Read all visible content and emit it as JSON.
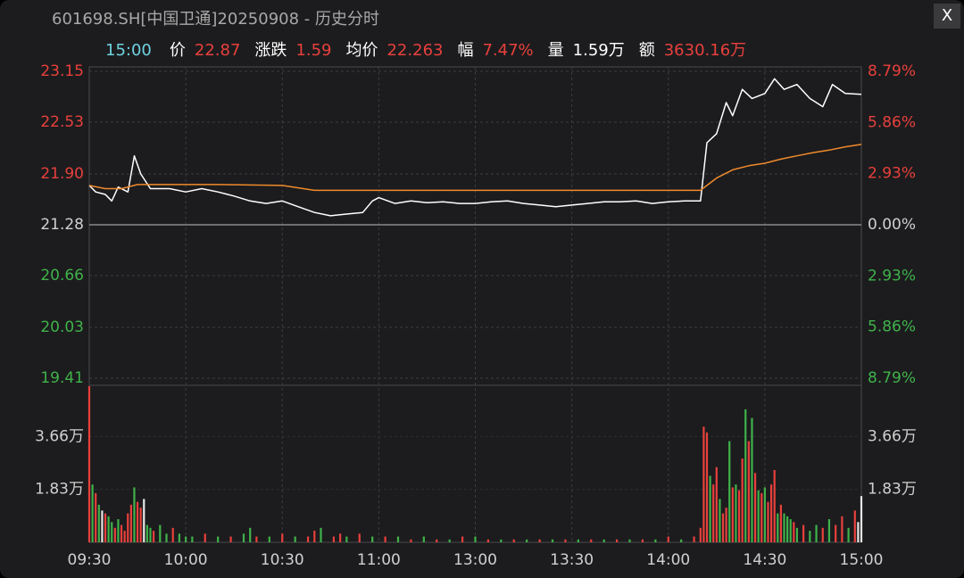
{
  "header": {
    "title": "601698.SH[中国卫通]20250908 - 历史分时",
    "close": "X"
  },
  "quote": {
    "time": "15:00",
    "items": [
      {
        "label": "价",
        "value": "22.87",
        "color": "#e8403c"
      },
      {
        "label": "涨跌",
        "value": "1.59",
        "color": "#e8403c"
      },
      {
        "label": "均价",
        "value": "22.263",
        "color": "#e8403c"
      },
      {
        "label": "幅",
        "value": "7.47%",
        "color": "#e8403c"
      },
      {
        "label": "量",
        "value": "1.59万",
        "color": "#ffffff"
      },
      {
        "label": "额",
        "value": "3630.16万",
        "color": "#e8403c"
      }
    ]
  },
  "chart_data": [
    {
      "type": "line",
      "xlim": [
        0,
        240
      ],
      "xticks": [
        {
          "value": 0,
          "label": "09:30"
        },
        {
          "value": 30,
          "label": "10:00"
        },
        {
          "value": 60,
          "label": "10:30"
        },
        {
          "value": 90,
          "label": "11:00"
        },
        {
          "value": 120,
          "label": "13:00"
        },
        {
          "value": 150,
          "label": "13:30"
        },
        {
          "value": 180,
          "label": "14:00"
        },
        {
          "value": 210,
          "label": "14:30"
        },
        {
          "value": 240,
          "label": "15:00"
        }
      ],
      "ylim": [
        19.41,
        23.15
      ],
      "yticks": [
        23.15,
        22.53,
        {
          "value": 21.9,
          "label": "21.90"
        },
        21.28,
        20.66,
        20.03,
        19.41
      ],
      "y2lim": [
        -8.79,
        8.79
      ],
      "y2ticks": [
        {
          "value": 8.79,
          "label": "8.79%"
        },
        {
          "value": 5.86,
          "label": "5.86%"
        },
        {
          "value": 2.93,
          "label": "2.93%"
        },
        {
          "value": 0,
          "label": "0.00%"
        },
        {
          "value": -2.93,
          "label": "2.93%"
        },
        {
          "value": -5.86,
          "label": "5.86%"
        },
        {
          "value": -8.79,
          "label": "8.79%"
        }
      ],
      "grid": true,
      "series": [
        {
          "color": "#ffffff",
          "x": [
            0,
            2,
            5,
            7,
            9,
            12,
            14,
            16,
            19,
            25,
            30,
            35,
            40,
            45,
            50,
            55,
            60,
            65,
            70,
            75,
            80,
            85,
            88,
            90,
            95,
            100,
            105,
            110,
            115,
            120,
            125,
            130,
            135,
            140,
            145,
            150,
            155,
            160,
            165,
            170,
            175,
            180,
            185,
            190,
            192,
            195,
            198,
            200,
            203,
            206,
            210,
            213,
            216,
            220,
            224,
            228,
            231,
            235,
            240
          ],
          "values": [
            21.76,
            21.68,
            21.65,
            21.57,
            21.74,
            21.68,
            22.12,
            21.9,
            21.72,
            21.72,
            21.68,
            21.72,
            21.68,
            21.63,
            21.57,
            21.54,
            21.57,
            21.5,
            21.43,
            21.39,
            21.41,
            21.43,
            21.57,
            21.61,
            21.54,
            21.57,
            21.55,
            21.56,
            21.54,
            21.54,
            21.56,
            21.57,
            21.54,
            21.52,
            21.5,
            21.52,
            21.54,
            21.56,
            21.56,
            21.57,
            21.54,
            21.56,
            21.57,
            21.57,
            22.28,
            22.39,
            22.77,
            22.61,
            22.93,
            22.82,
            22.88,
            23.06,
            22.93,
            22.99,
            22.82,
            22.72,
            22.99,
            22.88,
            22.87
          ]
        },
        {
          "color": "#f08a2c",
          "x": [
            0,
            5,
            10,
            15,
            20,
            40,
            60,
            70,
            100,
            150,
            190,
            195,
            200,
            205,
            210,
            215,
            220,
            225,
            230,
            235,
            240
          ],
          "values": [
            21.76,
            21.72,
            21.72,
            21.77,
            21.77,
            21.77,
            21.76,
            21.7,
            21.7,
            21.7,
            21.7,
            21.85,
            21.95,
            22.0,
            22.03,
            22.08,
            22.12,
            22.16,
            22.19,
            22.23,
            22.26
          ]
        }
      ]
    },
    {
      "type": "bar",
      "xlim": [
        0,
        240
      ],
      "ylim": [
        0,
        5.43
      ],
      "yticks": [
        {
          "value": 3.66,
          "label": "3.66万"
        },
        {
          "value": 1.83,
          "label": "1.83万"
        }
      ],
      "palette": {
        "u": "#e8403c",
        "d": "#3fb24a",
        "f": "#e6e6e6"
      },
      "x": [
        0,
        1,
        2,
        3,
        4,
        5,
        6,
        7,
        8,
        9,
        10,
        11,
        12,
        13,
        14,
        15,
        16,
        17,
        18,
        19,
        20,
        22,
        24,
        26,
        28,
        30,
        32,
        36,
        40,
        44,
        48,
        50,
        52,
        56,
        60,
        64,
        68,
        70,
        72,
        76,
        78,
        80,
        84,
        88,
        92,
        96,
        100,
        104,
        108,
        112,
        116,
        120,
        124,
        128,
        132,
        136,
        140,
        144,
        148,
        152,
        156,
        160,
        164,
        168,
        172,
        176,
        180,
        184,
        188,
        190,
        191,
        192,
        193,
        194,
        195,
        196,
        197,
        198,
        199,
        200,
        201,
        202,
        203,
        204,
        205,
        206,
        207,
        208,
        209,
        210,
        211,
        212,
        213,
        214,
        215,
        216,
        217,
        218,
        219,
        220,
        222,
        224,
        226,
        228,
        230,
        232,
        234,
        236,
        238,
        239,
        240
      ],
      "values": [
        5.4,
        2.0,
        1.7,
        1.3,
        1.1,
        1.0,
        0.9,
        0.7,
        0.5,
        0.8,
        0.6,
        0.4,
        1.0,
        1.3,
        1.9,
        1.4,
        1.2,
        1.5,
        0.6,
        0.5,
        0.4,
        0.6,
        0.3,
        0.5,
        0.3,
        0.2,
        0.2,
        0.3,
        0.2,
        0.2,
        0.3,
        0.5,
        0.2,
        0.2,
        0.3,
        0.2,
        0.2,
        0.4,
        0.5,
        0.2,
        0.3,
        0.2,
        0.3,
        0.2,
        0.2,
        0.2,
        0.1,
        0.2,
        0.1,
        0.1,
        0.2,
        0.2,
        0.1,
        0.1,
        0.1,
        0.1,
        0.1,
        0.1,
        0.1,
        0.1,
        0.1,
        0.1,
        0.1,
        0.1,
        0.1,
        0.1,
        0.2,
        0.1,
        0.2,
        0.5,
        4.0,
        3.8,
        2.3,
        2.0,
        2.6,
        1.5,
        1.0,
        1.2,
        3.5,
        1.9,
        2.0,
        1.8,
        2.9,
        4.6,
        3.5,
        4.3,
        2.4,
        1.8,
        1.7,
        1.9,
        1.4,
        2.0,
        2.5,
        1.0,
        1.3,
        1.0,
        0.9,
        0.8,
        0.7,
        0.5,
        0.6,
        0.4,
        0.6,
        0.5,
        0.8,
        0.6,
        0.9,
        0.5,
        1.1,
        0.7,
        1.6
      ],
      "colors": [
        "u",
        "d",
        "u",
        "d",
        "f",
        "u",
        "d",
        "d",
        "u",
        "d",
        "u",
        "u",
        "u",
        "u",
        "d",
        "u",
        "u",
        "f",
        "d",
        "d",
        "u",
        "d",
        "d",
        "u",
        "d",
        "d",
        "d",
        "u",
        "d",
        "u",
        "d",
        "d",
        "u",
        "d",
        "u",
        "d",
        "u",
        "u",
        "d",
        "u",
        "u",
        "d",
        "u",
        "d",
        "u",
        "d",
        "u",
        "d",
        "u",
        "d",
        "u",
        "d",
        "u",
        "d",
        "u",
        "d",
        "u",
        "d",
        "u",
        "d",
        "u",
        "d",
        "u",
        "d",
        "u",
        "d",
        "u",
        "d",
        "u",
        "u",
        "u",
        "u",
        "d",
        "u",
        "u",
        "d",
        "u",
        "u",
        "d",
        "u",
        "d",
        "u",
        "u",
        "d",
        "u",
        "d",
        "u",
        "d",
        "u",
        "d",
        "u",
        "u",
        "u",
        "d",
        "u",
        "d",
        "d",
        "d",
        "u",
        "d",
        "u",
        "d",
        "d",
        "u",
        "d",
        "u",
        "u",
        "d",
        "u",
        "f",
        "f"
      ]
    }
  ]
}
